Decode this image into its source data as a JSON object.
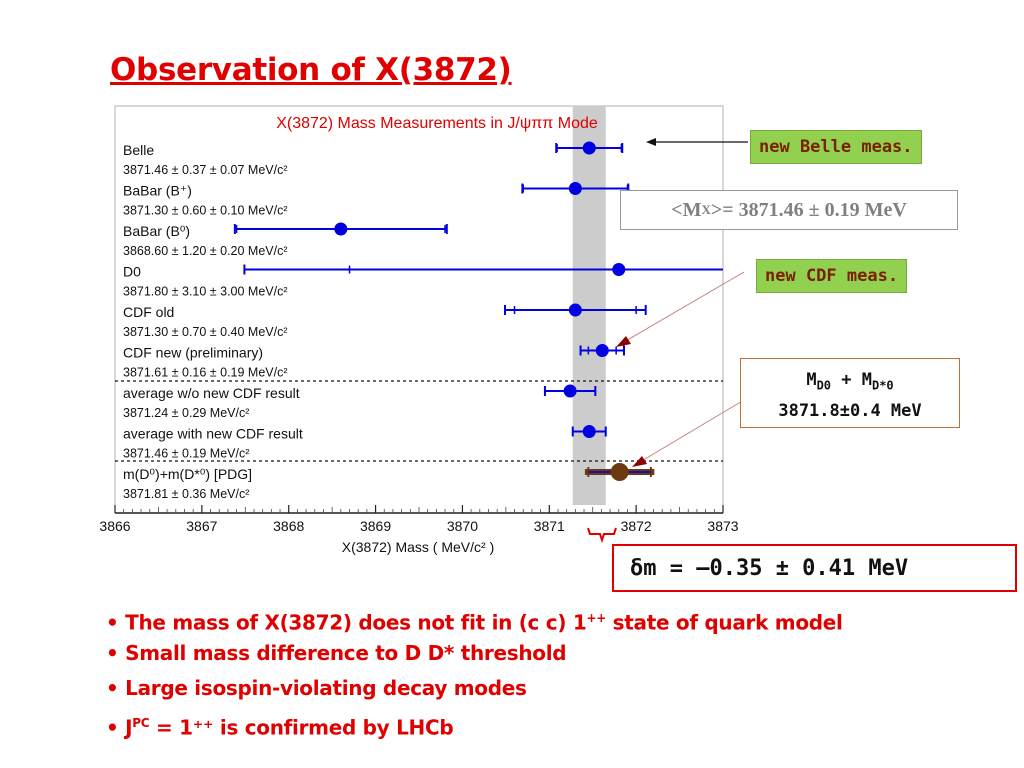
{
  "slide": {
    "title": "Observation of X(3872)",
    "callout_belle": "new Belle meas.",
    "callout_cdf": "new CDF meas.",
    "mean_prefix": "<M",
    "mean_sub": "X",
    "mean_value": ">= 3871.46 ± 0.19 MeV",
    "threshold_line1_a": "M",
    "threshold_line1_sub1": "D0",
    "threshold_line1_b": " + M",
    "threshold_line1_sub2": "D*0",
    "threshold_line2": "3871.8±0.4 MeV",
    "dm_text": "δm = –0.35 ± 0.41 MeV",
    "bullets": [
      {
        "text": "• The mass of X(3872) does not fit in (c c) 1",
        "sup": "++",
        "tail": " state of quark model"
      },
      {
        "text": "• Small mass difference to D D* threshold",
        "sup": "",
        "tail": ""
      },
      {
        "text": "• Large isospin-violating decay modes",
        "sup": "",
        "tail": ""
      },
      {
        "text": "• J",
        "sup": "PC",
        "tail": " = 1⁺⁺ is confirmed by LHCb"
      }
    ]
  },
  "colors": {
    "accent_red": "#e00000",
    "series_blue": "#0000e0",
    "pdg_brown": "#6b3a10",
    "band_gray": "#cccccc",
    "callout_green": "#92d050"
  },
  "chart_data": {
    "type": "scatter",
    "title": "X(3872) Mass Measurements in J/ψππ Mode",
    "xlabel": "X(3872) Mass  ( MeV/c² )",
    "xlim": [
      3866,
      3873
    ],
    "xticks": [
      "3866",
      "3867",
      "3868",
      "3869",
      "3870",
      "3871",
      "3872",
      "3873"
    ],
    "average_band": [
      3871.27,
      3871.65
    ],
    "measurements": [
      {
        "name": "Belle",
        "value_label": "3871.46 ± 0.37 ± 0.07 MeV/c²",
        "x": 3871.46,
        "stat": 0.37,
        "total": 0.38
      },
      {
        "name": "BaBar (B⁺)",
        "value_label": "3871.30 ± 0.60 ± 0.10 MeV/c²",
        "x": 3871.3,
        "stat": 0.6,
        "total": 0.61
      },
      {
        "name": "BaBar (B⁰)",
        "value_label": "3868.60 ± 1.20 ± 0.20 MeV/c²",
        "x": 3868.6,
        "stat": 1.2,
        "total": 1.22
      },
      {
        "name": "D0",
        "value_label": "3871.80 ± 3.10 ± 3.00 MeV/c²",
        "x": 3871.8,
        "stat": 3.1,
        "total": 4.31
      },
      {
        "name": "CDF old",
        "value_label": "3871.30 ± 0.70 ± 0.40 MeV/c²",
        "x": 3871.3,
        "stat": 0.7,
        "total": 0.81
      },
      {
        "name": "CDF new (preliminary)",
        "value_label": "3871.61 ± 0.16 ± 0.19 MeV/c²",
        "x": 3871.61,
        "stat": 0.16,
        "total": 0.25
      },
      {
        "name": "average w/o new CDF result",
        "value_label": "3871.24 ± 0.29 MeV/c²",
        "x": 3871.24,
        "stat": 0.29,
        "total": 0.29
      },
      {
        "name": "average with new CDF result",
        "value_label": "3871.46 ± 0.19 MeV/c²",
        "x": 3871.46,
        "stat": 0.19,
        "total": 0.19
      },
      {
        "name": "m(D⁰)+m(D*⁰) [PDG]",
        "value_label": "3871.81 ± 0.36 MeV/c²",
        "x": 3871.81,
        "stat": 0.36,
        "total": 0.36
      }
    ]
  }
}
